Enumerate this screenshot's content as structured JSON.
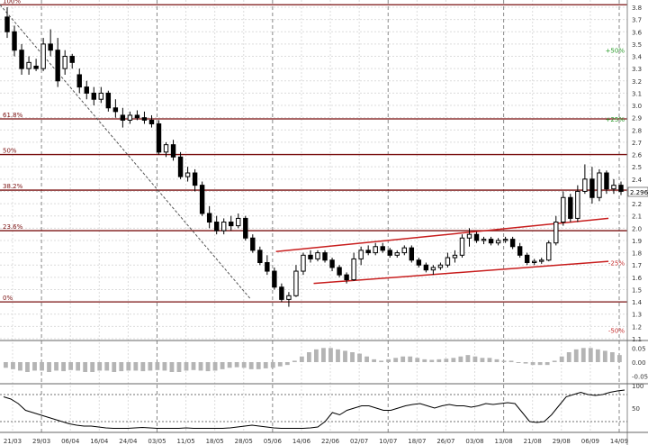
{
  "chart_data": {
    "type": "candlestick",
    "title": "",
    "price_axis": {
      "min": 1.1,
      "max": 3.8,
      "step": 0.1,
      "tick_labels": [
        "1.1",
        "1.2",
        "1.3",
        "1.4",
        "1.5",
        "1.6",
        "1.7",
        "1.8",
        "1.9",
        "2.0",
        "2.1",
        "2.2",
        "2.3",
        "2.4",
        "2.5",
        "2.6",
        "2.7",
        "2.8",
        "2.9",
        "3.0",
        "3.1",
        "3.2",
        "3.3",
        "3.4",
        "3.5",
        "3.6",
        "3.7",
        "3.8"
      ]
    },
    "last_price": "2.296",
    "x_axis": {
      "labels": [
        "21/03",
        "29/03",
        "06/04",
        "16/04",
        "24/04",
        "03/05",
        "11/05",
        "18/05",
        "28/05",
        "05/06",
        "14/06",
        "22/06",
        "02/07",
        "10/07",
        "18/07",
        "26/07",
        "03/08",
        "13/08",
        "21/08",
        "29/08",
        "06/09",
        "14/09"
      ]
    },
    "fibonacci_levels": [
      {
        "label": "100%",
        "price": 3.82
      },
      {
        "label": "61.8%",
        "price": 2.89
      },
      {
        "label": "50%",
        "price": 2.6
      },
      {
        "label": "38.2%",
        "price": 2.31
      },
      {
        "label": "23.6%",
        "price": 1.98
      },
      {
        "label": "0%",
        "price": 1.4
      }
    ],
    "projection_labels": [
      {
        "label": "+50%",
        "price": 3.45
      },
      {
        "label": "+25%",
        "price": 2.89
      },
      {
        "label": "-25%",
        "price": 1.72
      },
      {
        "label": "-50%",
        "price": 1.17
      }
    ],
    "trend_channel": {
      "upper": [
        {
          "x": 0.44,
          "price": 1.81
        },
        {
          "x": 0.97,
          "price": 2.08
        }
      ],
      "lower": [
        {
          "x": 0.5,
          "price": 1.55
        },
        {
          "x": 0.97,
          "price": 1.73
        }
      ]
    },
    "downtrend_line": [
      {
        "x": 0.0,
        "price": 3.82
      },
      {
        "x": 0.4,
        "price": 1.42
      }
    ],
    "candles": [
      {
        "o": 3.72,
        "h": 3.8,
        "l": 3.55,
        "c": 3.6
      },
      {
        "o": 3.6,
        "h": 3.65,
        "l": 3.4,
        "c": 3.45
      },
      {
        "o": 3.45,
        "h": 3.5,
        "l": 3.25,
        "c": 3.3
      },
      {
        "o": 3.3,
        "h": 3.4,
        "l": 3.25,
        "c": 3.35
      },
      {
        "o": 3.32,
        "h": 3.38,
        "l": 3.28,
        "c": 3.3
      },
      {
        "o": 3.3,
        "h": 3.55,
        "l": 3.28,
        "c": 3.5
      },
      {
        "o": 3.5,
        "h": 3.62,
        "l": 3.4,
        "c": 3.45
      },
      {
        "o": 3.45,
        "h": 3.55,
        "l": 3.15,
        "c": 3.2
      },
      {
        "o": 3.3,
        "h": 3.45,
        "l": 3.25,
        "c": 3.4
      },
      {
        "o": 3.4,
        "h": 3.42,
        "l": 3.3,
        "c": 3.35
      },
      {
        "o": 3.25,
        "h": 3.3,
        "l": 3.1,
        "c": 3.15
      },
      {
        "o": 3.15,
        "h": 3.2,
        "l": 3.05,
        "c": 3.1
      },
      {
        "o": 3.1,
        "h": 3.15,
        "l": 3.0,
        "c": 3.05
      },
      {
        "o": 3.05,
        "h": 3.15,
        "l": 3.02,
        "c": 3.1
      },
      {
        "o": 3.1,
        "h": 3.12,
        "l": 2.95,
        "c": 2.98
      },
      {
        "o": 2.98,
        "h": 3.05,
        "l": 2.9,
        "c": 2.95
      },
      {
        "o": 2.92,
        "h": 2.98,
        "l": 2.82,
        "c": 2.88
      },
      {
        "o": 2.88,
        "h": 2.95,
        "l": 2.85,
        "c": 2.92
      },
      {
        "o": 2.92,
        "h": 2.96,
        "l": 2.88,
        "c": 2.9
      },
      {
        "o": 2.9,
        "h": 2.95,
        "l": 2.85,
        "c": 2.88
      },
      {
        "o": 2.88,
        "h": 2.92,
        "l": 2.82,
        "c": 2.85
      },
      {
        "o": 2.85,
        "h": 2.88,
        "l": 2.6,
        "c": 2.62
      },
      {
        "o": 2.62,
        "h": 2.7,
        "l": 2.58,
        "c": 2.68
      },
      {
        "o": 2.68,
        "h": 2.72,
        "l": 2.55,
        "c": 2.58
      },
      {
        "o": 2.58,
        "h": 2.62,
        "l": 2.4,
        "c": 2.42
      },
      {
        "o": 2.42,
        "h": 2.5,
        "l": 2.38,
        "c": 2.45
      },
      {
        "o": 2.45,
        "h": 2.48,
        "l": 2.3,
        "c": 2.35
      },
      {
        "o": 2.35,
        "h": 2.38,
        "l": 2.1,
        "c": 2.12
      },
      {
        "o": 2.12,
        "h": 2.18,
        "l": 2.0,
        "c": 2.05
      },
      {
        "o": 2.05,
        "h": 2.1,
        "l": 1.95,
        "c": 1.98
      },
      {
        "o": 1.98,
        "h": 2.08,
        "l": 1.95,
        "c": 2.05
      },
      {
        "o": 2.05,
        "h": 2.1,
        "l": 1.98,
        "c": 2.02
      },
      {
        "o": 2.02,
        "h": 2.12,
        "l": 2.0,
        "c": 2.08
      },
      {
        "o": 2.08,
        "h": 2.1,
        "l": 1.9,
        "c": 1.92
      },
      {
        "o": 1.92,
        "h": 1.95,
        "l": 1.8,
        "c": 1.82
      },
      {
        "o": 1.82,
        "h": 1.85,
        "l": 1.7,
        "c": 1.72
      },
      {
        "o": 1.72,
        "h": 1.78,
        "l": 1.62,
        "c": 1.65
      },
      {
        "o": 1.65,
        "h": 1.68,
        "l": 1.5,
        "c": 1.52
      },
      {
        "o": 1.52,
        "h": 1.55,
        "l": 1.4,
        "c": 1.42
      },
      {
        "o": 1.42,
        "h": 1.48,
        "l": 1.36,
        "c": 1.45
      },
      {
        "o": 1.45,
        "h": 1.7,
        "l": 1.44,
        "c": 1.65
      },
      {
        "o": 1.65,
        "h": 1.8,
        "l": 1.62,
        "c": 1.78
      },
      {
        "o": 1.78,
        "h": 1.82,
        "l": 1.72,
        "c": 1.75
      },
      {
        "o": 1.75,
        "h": 1.82,
        "l": 1.73,
        "c": 1.8
      },
      {
        "o": 1.8,
        "h": 1.82,
        "l": 1.72,
        "c": 1.74
      },
      {
        "o": 1.74,
        "h": 1.76,
        "l": 1.65,
        "c": 1.68
      },
      {
        "o": 1.68,
        "h": 1.7,
        "l": 1.6,
        "c": 1.62
      },
      {
        "o": 1.62,
        "h": 1.64,
        "l": 1.55,
        "c": 1.58
      },
      {
        "o": 1.58,
        "h": 1.8,
        "l": 1.57,
        "c": 1.75
      },
      {
        "o": 1.75,
        "h": 1.85,
        "l": 1.7,
        "c": 1.82
      },
      {
        "o": 1.82,
        "h": 1.86,
        "l": 1.78,
        "c": 1.8
      },
      {
        "o": 1.8,
        "h": 1.88,
        "l": 1.78,
        "c": 1.85
      },
      {
        "o": 1.85,
        "h": 1.88,
        "l": 1.8,
        "c": 1.82
      },
      {
        "o": 1.82,
        "h": 1.84,
        "l": 1.76,
        "c": 1.78
      },
      {
        "o": 1.78,
        "h": 1.82,
        "l": 1.76,
        "c": 1.8
      },
      {
        "o": 1.8,
        "h": 1.86,
        "l": 1.78,
        "c": 1.84
      },
      {
        "o": 1.84,
        "h": 1.86,
        "l": 1.72,
        "c": 1.74
      },
      {
        "o": 1.74,
        "h": 1.76,
        "l": 1.68,
        "c": 1.7
      },
      {
        "o": 1.7,
        "h": 1.72,
        "l": 1.64,
        "c": 1.66
      },
      {
        "o": 1.66,
        "h": 1.7,
        "l": 1.62,
        "c": 1.68
      },
      {
        "o": 1.68,
        "h": 1.72,
        "l": 1.66,
        "c": 1.7
      },
      {
        "o": 1.7,
        "h": 1.8,
        "l": 1.68,
        "c": 1.76
      },
      {
        "o": 1.76,
        "h": 1.82,
        "l": 1.72,
        "c": 1.78
      },
      {
        "o": 1.78,
        "h": 1.95,
        "l": 1.76,
        "c": 1.92
      },
      {
        "o": 1.92,
        "h": 2.0,
        "l": 1.85,
        "c": 1.95
      },
      {
        "o": 1.95,
        "h": 1.97,
        "l": 1.88,
        "c": 1.9
      },
      {
        "o": 1.9,
        "h": 1.93,
        "l": 1.87,
        "c": 1.91
      },
      {
        "o": 1.91,
        "h": 1.93,
        "l": 1.86,
        "c": 1.88
      },
      {
        "o": 1.88,
        "h": 1.92,
        "l": 1.86,
        "c": 1.9
      },
      {
        "o": 1.9,
        "h": 1.93,
        "l": 1.88,
        "c": 1.91
      },
      {
        "o": 1.91,
        "h": 1.93,
        "l": 1.83,
        "c": 1.85
      },
      {
        "o": 1.85,
        "h": 1.88,
        "l": 1.76,
        "c": 1.78
      },
      {
        "o": 1.78,
        "h": 1.8,
        "l": 1.7,
        "c": 1.72
      },
      {
        "o": 1.72,
        "h": 1.75,
        "l": 1.7,
        "c": 1.73
      },
      {
        "o": 1.73,
        "h": 1.76,
        "l": 1.71,
        "c": 1.74
      },
      {
        "o": 1.74,
        "h": 1.9,
        "l": 1.73,
        "c": 1.88
      },
      {
        "o": 1.88,
        "h": 2.1,
        "l": 1.86,
        "c": 2.05
      },
      {
        "o": 2.05,
        "h": 2.3,
        "l": 2.02,
        "c": 2.25
      },
      {
        "o": 2.25,
        "h": 2.28,
        "l": 2.05,
        "c": 2.08
      },
      {
        "o": 2.08,
        "h": 2.35,
        "l": 2.05,
        "c": 2.3
      },
      {
        "o": 2.3,
        "h": 2.52,
        "l": 2.28,
        "c": 2.4
      },
      {
        "o": 2.4,
        "h": 2.5,
        "l": 2.2,
        "c": 2.25
      },
      {
        "o": 2.25,
        "h": 2.48,
        "l": 2.22,
        "c": 2.45
      },
      {
        "o": 2.45,
        "h": 2.47,
        "l": 2.28,
        "c": 2.32
      },
      {
        "o": 2.32,
        "h": 2.4,
        "l": 2.28,
        "c": 2.35
      },
      {
        "o": 2.35,
        "h": 2.38,
        "l": 2.27,
        "c": 2.3
      }
    ],
    "oscillator_1": {
      "ticks": [
        "0.05",
        "0.00",
        "-0.05"
      ],
      "min": -0.07,
      "max": 0.07,
      "values": [
        -0.02,
        -0.025,
        -0.03,
        -0.035,
        -0.03,
        -0.03,
        -0.035,
        -0.03,
        -0.032,
        -0.028,
        -0.03,
        -0.035,
        -0.035,
        -0.03,
        -0.03,
        -0.035,
        -0.032,
        -0.03,
        -0.03,
        -0.032,
        -0.03,
        -0.028,
        -0.03,
        -0.035,
        -0.035,
        -0.03,
        -0.028,
        -0.03,
        -0.032,
        -0.03,
        -0.025,
        -0.02,
        -0.018,
        -0.02,
        -0.025,
        -0.025,
        -0.022,
        -0.02,
        -0.015,
        -0.01,
        0.005,
        0.02,
        0.035,
        0.045,
        0.05,
        0.05,
        0.045,
        0.04,
        0.035,
        0.03,
        0.02,
        0.01,
        0.005,
        0.01,
        0.015,
        0.02,
        0.02,
        0.015,
        0.01,
        0.008,
        0.01,
        0.012,
        0.015,
        0.02,
        0.025,
        0.02,
        0.015,
        0.015,
        0.01,
        0.005,
        0.005,
        0.0,
        -0.005,
        -0.01,
        -0.01,
        -0.01,
        0.005,
        0.02,
        0.035,
        0.045,
        0.05,
        0.05,
        0.045,
        0.04,
        0.035,
        0.025
      ]
    },
    "oscillator_2": {
      "ticks": [
        "100",
        "50"
      ],
      "min": 0,
      "max": 100,
      "values": [
        75,
        70,
        60,
        45,
        40,
        35,
        30,
        25,
        20,
        15,
        12,
        10,
        10,
        8,
        6,
        5,
        5,
        5,
        6,
        7,
        6,
        5,
        5,
        5,
        5,
        6,
        5,
        5,
        5,
        5,
        5,
        6,
        8,
        10,
        12,
        10,
        8,
        6,
        5,
        5,
        5,
        5,
        6,
        8,
        20,
        40,
        35,
        45,
        50,
        55,
        55,
        50,
        45,
        45,
        50,
        55,
        58,
        60,
        55,
        50,
        55,
        58,
        55,
        55,
        52,
        55,
        60,
        58,
        60,
        62,
        60,
        40,
        20,
        18,
        20,
        35,
        55,
        75,
        80,
        85,
        80,
        78,
        80,
        85,
        88,
        90
      ]
    }
  }
}
